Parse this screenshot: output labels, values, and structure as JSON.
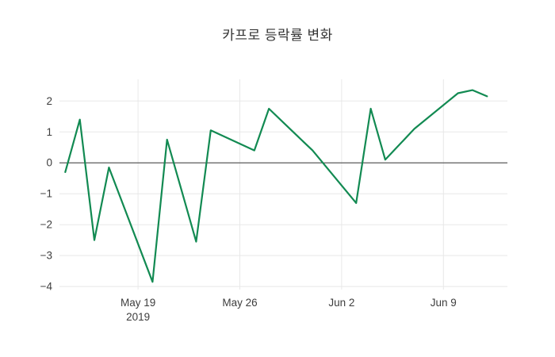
{
  "figure": {
    "background": "#ffffff"
  },
  "chart_data": {
    "type": "line",
    "title": "카프로 등락률 변화",
    "xlabel": "",
    "ylabel": "",
    "legend": "none",
    "grid": true,
    "zero_line": true,
    "line_color": "#128a52",
    "colors": {
      "grid": "#e8e8e8",
      "zero_line": "#3a3a3a",
      "tick_text": "#3d3d3d"
    },
    "x_base_date": "2019-05-19",
    "x": [
      "2019-05-14",
      "2019-05-15",
      "2019-05-16",
      "2019-05-17",
      "2019-05-20",
      "2019-05-21",
      "2019-05-22",
      "2019-05-23",
      "2019-05-24",
      "2019-05-27",
      "2019-05-28",
      "2019-05-29",
      "2019-05-30",
      "2019-05-31",
      "2019-06-03",
      "2019-06-04",
      "2019-06-05",
      "2019-06-06",
      "2019-06-07",
      "2019-06-10",
      "2019-06-11",
      "2019-06-12"
    ],
    "y": [
      -0.3,
      1.4,
      -2.5,
      -0.15,
      -3.85,
      0.75,
      -0.9,
      -2.55,
      1.05,
      0.4,
      1.75,
      1.3,
      0.85,
      0.4,
      -1.3,
      1.75,
      0.1,
      0.6,
      1.1,
      2.25,
      2.35,
      2.15
    ],
    "x_ticks": [
      {
        "offset_days": 0,
        "label": "May 19",
        "sublabel": "2019"
      },
      {
        "offset_days": 7,
        "label": "May 26",
        "sublabel": ""
      },
      {
        "offset_days": 14,
        "label": "Jun 2",
        "sublabel": ""
      },
      {
        "offset_days": 21,
        "label": "Jun 9",
        "sublabel": ""
      }
    ],
    "y_ticks": [
      2,
      1,
      0,
      -1,
      -2,
      -3,
      -4
    ],
    "ylim": [
      -4.1,
      2.7
    ],
    "xlim_offset_days": [
      -5.4,
      25.4
    ]
  }
}
